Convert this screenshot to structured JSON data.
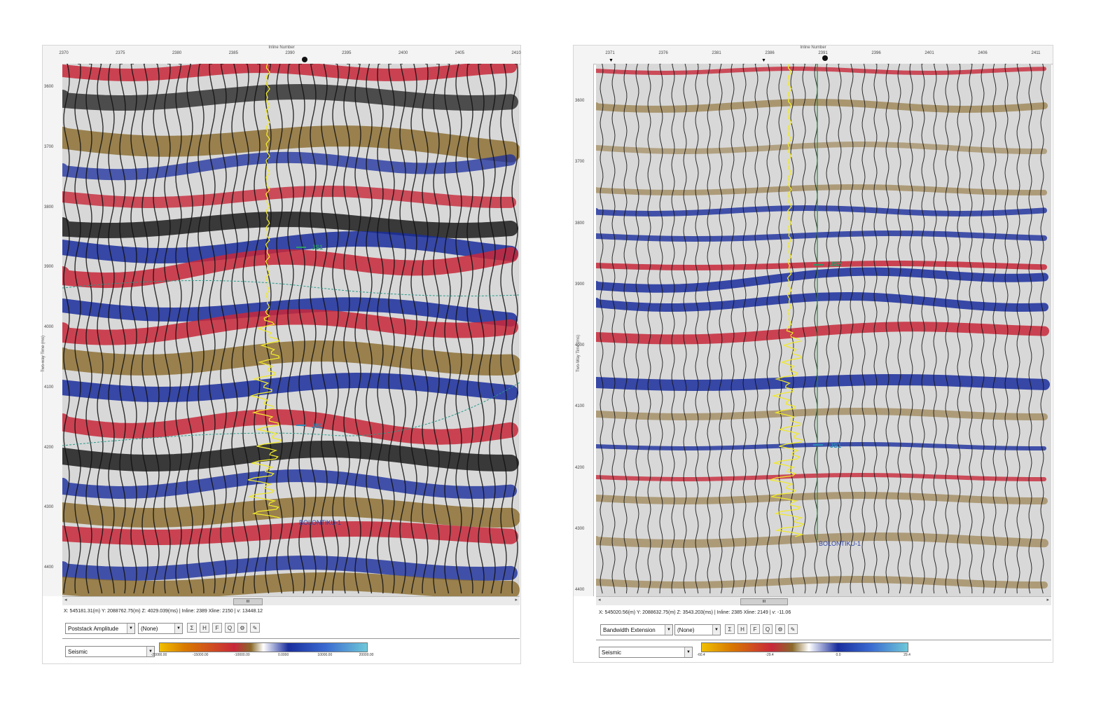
{
  "left": {
    "axis_title": "Inline Number",
    "x_ticks": [
      "2370",
      "2375",
      "2380",
      "2385",
      "2390",
      "2395",
      "2400",
      "2405",
      "2410"
    ],
    "y_label": "Two-way Time (ms)",
    "y_ticks": [
      "3600",
      "3700",
      "3800",
      "3900",
      "4000",
      "4100",
      "4200",
      "4300",
      "4400"
    ],
    "horizon_top": "JS1",
    "horizon_bottom": "JS1",
    "well_name": "BOLONTIKU-1",
    "status": "X: 545181.31(m) Y: 2088762.75(m) Z: 4029.039(ms) | Inline: 2389 Xline: 2150 | v: 13448.12",
    "attribute_select": "Poststack Amplitude",
    "none_select": "(None)",
    "colormap_select": "Seismic",
    "colorbar_labels": [
      "-20000.00",
      "-15000.00",
      "-10000.00",
      "0.0000",
      "10000.00",
      "20000.00"
    ],
    "scroll_label": "III",
    "toolbar_icons": [
      "sigma-icon",
      "h-filter-icon",
      "f-filter-icon",
      "q-icon",
      "gear-icon",
      "wrench-icon"
    ]
  },
  "right": {
    "axis_title": "Inline Number",
    "x_ticks": [
      "2371",
      "2376",
      "2381",
      "2386",
      "2391",
      "2396",
      "2401",
      "2406",
      "2411"
    ],
    "y_label": "Two-Way Time (ms)",
    "y_ticks": [
      "3600",
      "3700",
      "3800",
      "3900",
      "4000",
      "4100",
      "4200",
      "4300",
      "4400"
    ],
    "horizon_top": "JS2",
    "horizon_bottom": "JS1",
    "well_name": "BOLONTIKU-1",
    "status": "X: 545020.56(m) Y: 2088632.75(m) Z: 3543.203(ms) | Inline: 2385 Xline: 2149 | v: -11.06",
    "attribute_select": "Bandwidth Extension",
    "none_select": "(None)",
    "colormap_select": "Seismic",
    "colorbar_labels": [
      "-60.4",
      "-29.4",
      "0.0",
      "29.4"
    ],
    "scroll_label": "III",
    "toolbar_icons": [
      "sigma-icon",
      "h-filter-icon",
      "f-filter-icon",
      "q-icon",
      "gear-icon",
      "wrench-icon"
    ]
  },
  "colors": {
    "seismic_brown": "#8a6a2a",
    "seismic_red": "#c8283a",
    "seismic_blue": "#1a2e9e",
    "seismic_black": "#111111",
    "well_log": "#f2ea2a",
    "horizon": "#2a9a8a",
    "well_trace": "#1f8a3a",
    "colorbar_cyan": "#6ec8d8"
  }
}
